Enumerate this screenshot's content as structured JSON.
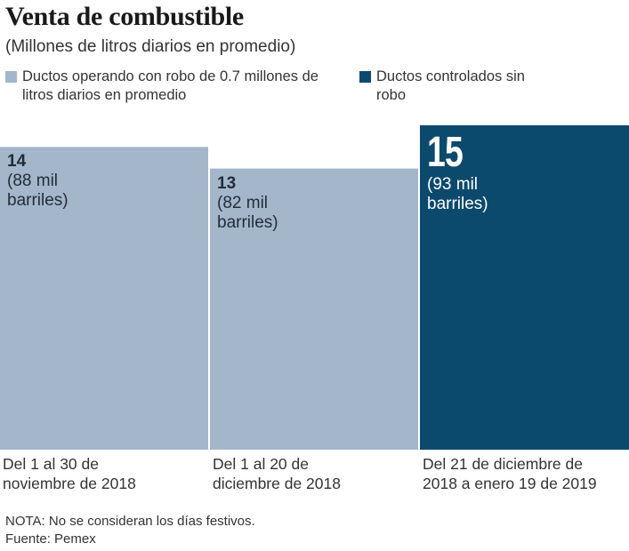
{
  "title": "Venta de combustible",
  "subtitle": "(Millones de litros diarios en promedio)",
  "colors": {
    "light": "#a4b6c9",
    "dark": "#0b4a6c"
  },
  "legend": [
    {
      "label": "Ductos operando con robo de 0.7 millones de litros diarios en promedio",
      "color": "#a4b6c9"
    },
    {
      "label": "Ductos controlados sin robo",
      "color": "#0b4a6c"
    }
  ],
  "chart_data": {
    "type": "bar",
    "title": "Venta de combustible",
    "subtitle": "(Millones de litros diarios en promedio)",
    "ylabel": "Millones de litros diarios en promedio",
    "ylim": [
      0,
      15
    ],
    "categories": [
      "Del 1 al 30 de noviembre de 2018",
      "Del 1 al 20 de diciembre de 2018",
      "Del 21 de diciembre de 2018 a enero 19 de 2019"
    ],
    "values": [
      14,
      13,
      15
    ],
    "value_labels": [
      "14",
      "13",
      "15"
    ],
    "annotations": [
      "(88 mil barriles)",
      "(82 mil barriles)",
      "(93 mil barriles)"
    ],
    "series_of_bar": [
      "Ductos operando con robo de 0.7 millones de litros diarios en promedio",
      "Ductos operando con robo de 0.7 millones de litros diarios en promedio",
      "Ductos controlados sin robo"
    ]
  },
  "footer": {
    "note": "NOTA: No se consideran los días festivos.",
    "source": "Fuente: Pemex"
  }
}
